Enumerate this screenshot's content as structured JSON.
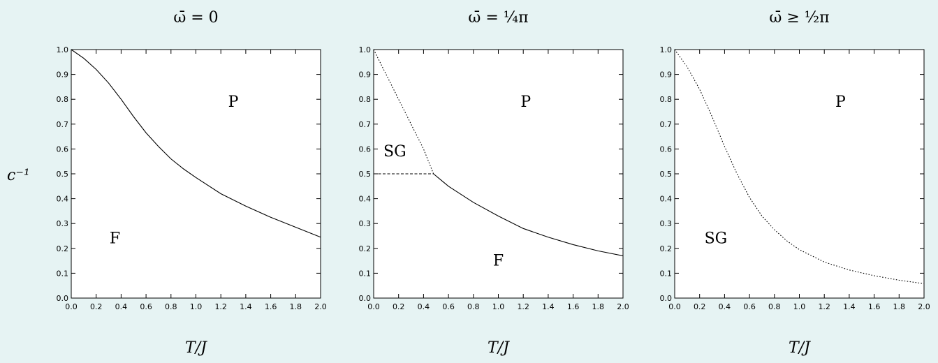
{
  "figure": {
    "ylabel": "c⁻¹",
    "colors": {
      "background": "#e6f3f3",
      "plot_bg": "#ffffff",
      "ink": "#000000"
    }
  },
  "chart_data": [
    {
      "type": "line",
      "title": "ω̄ = 0",
      "xlabel": "T/J",
      "xlim": [
        0,
        2.0
      ],
      "ylim": [
        0,
        1.0
      ],
      "xticks": [
        "0.0",
        "0.2",
        "0.4",
        "0.6",
        "0.8",
        "1.0",
        "1.2",
        "1.4",
        "1.6",
        "1.8",
        "2.0"
      ],
      "yticks": [
        "0.0",
        "0.1",
        "0.2",
        "0.3",
        "0.4",
        "0.5",
        "0.6",
        "0.7",
        "0.8",
        "0.9",
        "1.0"
      ],
      "series": [
        {
          "style": "solid",
          "points": [
            [
              0.0,
              1.0
            ],
            [
              0.1,
              0.965
            ],
            [
              0.2,
              0.92
            ],
            [
              0.3,
              0.865
            ],
            [
              0.4,
              0.8
            ],
            [
              0.5,
              0.73
            ],
            [
              0.6,
              0.665
            ],
            [
              0.7,
              0.61
            ],
            [
              0.8,
              0.56
            ],
            [
              0.9,
              0.52
            ],
            [
              1.0,
              0.485
            ],
            [
              1.2,
              0.42
            ],
            [
              1.4,
              0.37
            ],
            [
              1.6,
              0.325
            ],
            [
              1.8,
              0.285
            ],
            [
              2.0,
              0.245
            ]
          ]
        }
      ],
      "regions": [
        {
          "label": "P",
          "x": 1.3,
          "y": 0.77
        },
        {
          "label": "F",
          "x": 0.35,
          "y": 0.22
        }
      ]
    },
    {
      "type": "line",
      "title": "ω̄ = ¼π",
      "xlabel": "T/J",
      "xlim": [
        0,
        2.0
      ],
      "ylim": [
        0,
        1.0
      ],
      "xticks": [
        "0.0",
        "0.2",
        "0.4",
        "0.6",
        "0.8",
        "1.0",
        "1.2",
        "1.4",
        "1.6",
        "1.8",
        "2.0"
      ],
      "yticks": [
        "0.0",
        "0.1",
        "0.2",
        "0.3",
        "0.4",
        "0.5",
        "0.6",
        "0.7",
        "0.8",
        "0.9",
        "1.0"
      ],
      "series": [
        {
          "style": "dotted",
          "points": [
            [
              0.0,
              1.0
            ],
            [
              0.1,
              0.9
            ],
            [
              0.2,
              0.8
            ],
            [
              0.3,
              0.7
            ],
            [
              0.4,
              0.6
            ],
            [
              0.48,
              0.5
            ]
          ]
        },
        {
          "style": "dashed",
          "points": [
            [
              0.0,
              0.5
            ],
            [
              0.48,
              0.5
            ]
          ]
        },
        {
          "style": "solid",
          "points": [
            [
              0.48,
              0.5
            ],
            [
              0.6,
              0.45
            ],
            [
              0.8,
              0.385
            ],
            [
              1.0,
              0.33
            ],
            [
              1.2,
              0.28
            ],
            [
              1.4,
              0.245
            ],
            [
              1.6,
              0.215
            ],
            [
              1.8,
              0.19
            ],
            [
              2.0,
              0.17
            ]
          ]
        }
      ],
      "regions": [
        {
          "label": "P",
          "x": 1.22,
          "y": 0.77
        },
        {
          "label": "SG",
          "x": 0.17,
          "y": 0.57
        },
        {
          "label": "F",
          "x": 1.0,
          "y": 0.13
        }
      ]
    },
    {
      "type": "line",
      "title": "ω̄ ≥ ½π",
      "xlabel": "T/J",
      "xlim": [
        0,
        2.0
      ],
      "ylim": [
        0,
        1.0
      ],
      "xticks": [
        "0.0",
        "0.2",
        "0.4",
        "0.6",
        "0.8",
        "1.0",
        "1.2",
        "1.4",
        "1.6",
        "1.8",
        "2.0"
      ],
      "yticks": [
        "0.0",
        "0.1",
        "0.2",
        "0.3",
        "0.4",
        "0.5",
        "0.6",
        "0.7",
        "0.8",
        "0.9",
        "1.0"
      ],
      "series": [
        {
          "style": "dotted",
          "points": [
            [
              0.0,
              1.0
            ],
            [
              0.1,
              0.93
            ],
            [
              0.2,
              0.84
            ],
            [
              0.3,
              0.73
            ],
            [
              0.4,
              0.61
            ],
            [
              0.5,
              0.5
            ],
            [
              0.6,
              0.405
            ],
            [
              0.7,
              0.33
            ],
            [
              0.8,
              0.275
            ],
            [
              0.9,
              0.23
            ],
            [
              1.0,
              0.195
            ],
            [
              1.2,
              0.145
            ],
            [
              1.4,
              0.113
            ],
            [
              1.6,
              0.09
            ],
            [
              1.8,
              0.072
            ],
            [
              2.0,
              0.058
            ]
          ]
        }
      ],
      "regions": [
        {
          "label": "P",
          "x": 1.33,
          "y": 0.77
        },
        {
          "label": "SG",
          "x": 0.33,
          "y": 0.22
        }
      ]
    }
  ]
}
